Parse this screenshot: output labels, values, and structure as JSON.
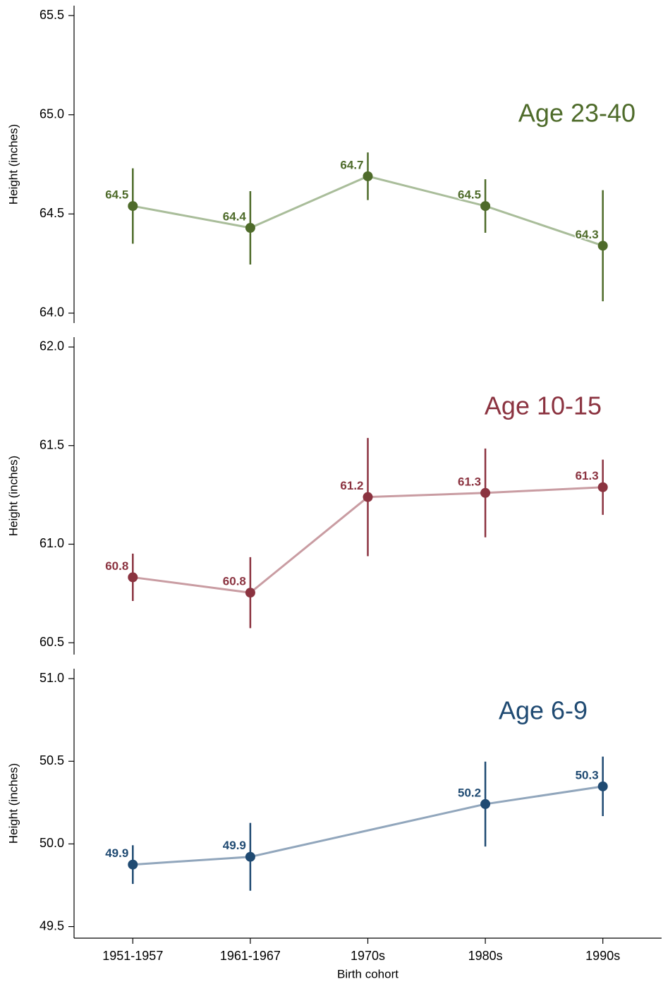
{
  "chart_data": [
    {
      "type": "line",
      "title": "Age 23-40",
      "y_label": "Height (inches)",
      "color": "#4e6b2a",
      "line_color": "#a9bd9a",
      "values": [
        64.54,
        64.43,
        64.69,
        64.54,
        64.34
      ],
      "value_labels": [
        "64.5",
        "64.4",
        "64.7",
        "64.5",
        "64.3"
      ],
      "errors": [
        0.19,
        0.185,
        0.12,
        0.135,
        0.28
      ],
      "ylim": [
        63.95,
        65.55
      ],
      "yticks": [
        {
          "value": 64,
          "label": "64.0"
        },
        64.5,
        {
          "value": 65,
          "label": "65.0"
        },
        65.5
      ]
    },
    {
      "type": "line",
      "title": "Age 10-15",
      "y_label": "Height (inches)",
      "color": "#8b3340",
      "line_color": "#c99ca2",
      "values": [
        60.832,
        60.754,
        61.239,
        61.26,
        61.289
      ],
      "value_labels": [
        "60.8",
        "60.8",
        "61.2",
        "61.3",
        "61.3"
      ],
      "errors": [
        0.12,
        0.18,
        0.3,
        0.225,
        0.14
      ],
      "ylim": [
        60.44,
        62.05
      ],
      "yticks": [
        60.5,
        {
          "value": 61,
          "label": "61.0"
        },
        61.5,
        {
          "value": 62,
          "label": "62.0"
        }
      ]
    },
    {
      "type": "line",
      "title": "Age 6-9",
      "y_label": "Height (inches)",
      "x_label": "Birth cohort",
      "color": "#1f4a72",
      "line_color": "#91a6bc",
      "categories": [
        "1951-1957",
        "1961-1967",
        "1970s",
        "1980s",
        "1990s"
      ],
      "values": [
        49.875,
        49.922,
        null,
        50.241,
        50.348
      ],
      "value_labels": [
        "49.9",
        "49.9",
        null,
        "50.2",
        "50.3"
      ],
      "errors": [
        0.117,
        0.205,
        null,
        0.257,
        0.18
      ],
      "ylim": [
        49.43,
        51.06
      ],
      "yticks": [
        49.5,
        {
          "value": 50,
          "label": "50.0"
        },
        50.5,
        {
          "value": 51,
          "label": "51.0"
        }
      ]
    }
  ]
}
